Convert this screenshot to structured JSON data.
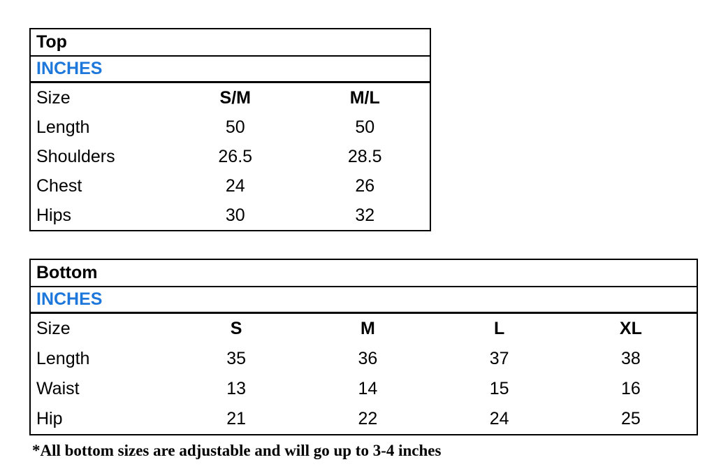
{
  "top_table": {
    "title": "Top",
    "units": "INCHES",
    "size_row": {
      "label": "Size",
      "values": [
        "S/M",
        "M/L"
      ]
    },
    "rows": [
      {
        "label": "Length",
        "values": [
          "50",
          "50"
        ]
      },
      {
        "label": "Shoulders",
        "values": [
          "26.5",
          "28.5"
        ]
      },
      {
        "label": "Chest",
        "values": [
          "24",
          "26"
        ]
      },
      {
        "label": "Hips",
        "values": [
          "30",
          "32"
        ]
      }
    ]
  },
  "bottom_table": {
    "title": "Bottom",
    "units": "INCHES",
    "size_row": {
      "label": "Size",
      "values": [
        "S",
        "M",
        "L",
        "XL"
      ]
    },
    "rows": [
      {
        "label": "Length",
        "values": [
          "35",
          "36",
          "37",
          "38"
        ]
      },
      {
        "label": "Waist",
        "values": [
          "13",
          "14",
          "15",
          "16"
        ]
      },
      {
        "label": "Hip",
        "values": [
          "21",
          "22",
          "24",
          "25"
        ]
      }
    ]
  },
  "footnote": "*All bottom sizes are adjustable and will go up to 3-4 inches",
  "colors": {
    "accent_blue": "#1E78DB",
    "border": "#000000",
    "background": "#FFFFFF",
    "text": "#000000"
  }
}
